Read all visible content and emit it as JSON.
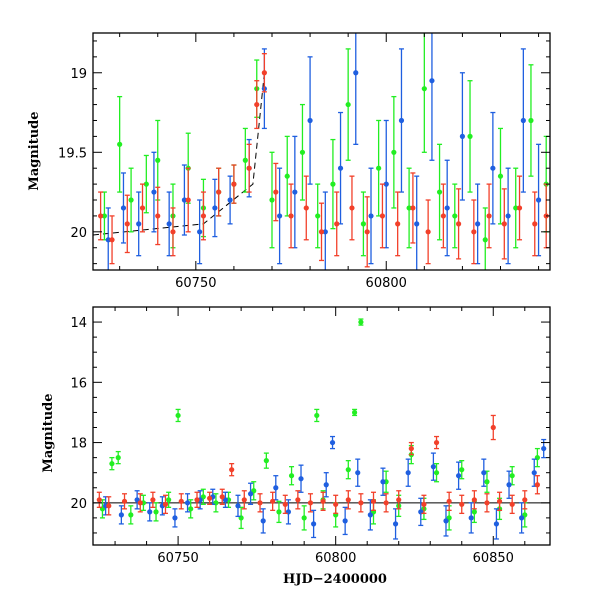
{
  "chart_data": [
    {
      "type": "scatter",
      "panel": "top",
      "ylabel": "Magnitude",
      "xlabel": "",
      "xlim": [
        60723,
        60843
      ],
      "ylim": [
        20.24,
        18.75
      ],
      "y_inverted": true,
      "x_major_ticks": [
        60750,
        60800
      ],
      "x_minor_step": 10,
      "y_major_ticks": [
        19,
        19.5,
        20
      ],
      "y_tick_labels": [
        "19",
        "19.5",
        "20"
      ],
      "x_tick_labels": [
        "60750",
        "60800"
      ],
      "y_minor_step": 0.1,
      "reference_line": {
        "style": "dashed",
        "points": [
          [
            60723,
            20.02
          ],
          [
            60752,
            19.95
          ],
          [
            60765,
            19.7
          ],
          [
            60768,
            19.0
          ]
        ]
      },
      "series": [
        {
          "color": "#22ee22",
          "x": [
            60726,
            60730,
            60733,
            60737,
            60740,
            60744,
            60748,
            60752,
            60756,
            60760,
            60763,
            60766,
            60770,
            60774,
            60778,
            60782,
            60786,
            60790,
            60794,
            60798,
            60802,
            60806,
            60810,
            60814,
            60818,
            60822,
            60826,
            60830,
            60834,
            60838,
            60842
          ],
          "y": [
            19.9,
            19.45,
            19.8,
            19.7,
            19.55,
            19.9,
            19.6,
            19.85,
            19.75,
            19.7,
            19.55,
            19.1,
            19.8,
            19.65,
            19.5,
            19.9,
            19.7,
            19.2,
            19.95,
            19.6,
            19.5,
            19.85,
            19.1,
            19.75,
            19.9,
            19.4,
            20.05,
            19.65,
            19.85,
            19.3,
            19.7
          ],
          "err": [
            0.15,
            0.3,
            0.2,
            0.18,
            0.25,
            0.2,
            0.22,
            0.18,
            0.15,
            0.12,
            0.2,
            0.18,
            0.3,
            0.25,
            0.3,
            0.2,
            0.28,
            0.35,
            0.2,
            0.3,
            0.35,
            0.25,
            0.4,
            0.3,
            0.2,
            0.35,
            0.2,
            0.3,
            0.25,
            0.35,
            0.3
          ]
        },
        {
          "color": "#1f5fe0",
          "x": [
            60727,
            60731,
            60735,
            60739,
            60743,
            60747,
            60751,
            60755,
            60759,
            60764,
            60768,
            60772,
            60776,
            60780,
            60784,
            60788,
            60792,
            60796,
            60800,
            60804,
            60808,
            60812,
            60816,
            60820,
            60824,
            60828,
            60832,
            60836,
            60840
          ],
          "y": [
            20.05,
            19.85,
            19.95,
            19.75,
            19.95,
            19.8,
            20.0,
            19.85,
            19.8,
            19.6,
            19.1,
            19.9,
            19.75,
            19.3,
            20.0,
            19.6,
            19.0,
            19.9,
            19.7,
            19.3,
            19.95,
            19.05,
            19.85,
            19.4,
            19.95,
            19.6,
            19.9,
            19.3,
            19.8
          ],
          "err": [
            0.2,
            0.22,
            0.2,
            0.25,
            0.2,
            0.22,
            0.2,
            0.18,
            0.15,
            0.18,
            0.25,
            0.3,
            0.35,
            0.4,
            0.25,
            0.35,
            0.45,
            0.3,
            0.4,
            0.45,
            0.3,
            0.5,
            0.3,
            0.4,
            0.25,
            0.35,
            0.3,
            0.45,
            0.35
          ]
        },
        {
          "color": "#f2402a",
          "x": [
            60725,
            60728,
            60732,
            60736,
            60740,
            60744,
            60748,
            60752,
            60756,
            60760,
            60764,
            60766,
            60768,
            60771,
            60775,
            60779,
            60783,
            60787,
            60791,
            60795,
            60799,
            60803,
            60807,
            60811,
            60815,
            60819,
            60823,
            60827,
            60831,
            60835,
            60839,
            60842
          ],
          "y": [
            19.9,
            20.05,
            19.95,
            19.85,
            19.9,
            20.0,
            19.8,
            19.9,
            19.75,
            19.7,
            19.6,
            19.2,
            19.0,
            19.75,
            19.9,
            19.85,
            20.0,
            19.95,
            19.85,
            20.0,
            19.9,
            19.95,
            19.85,
            20.0,
            19.9,
            19.95,
            20.0,
            19.9,
            19.95,
            19.85,
            19.95,
            19.9
          ],
          "err": [
            0.15,
            0.15,
            0.18,
            0.15,
            0.18,
            0.15,
            0.2,
            0.15,
            0.15,
            0.12,
            0.15,
            0.15,
            0.12,
            0.18,
            0.2,
            0.2,
            0.18,
            0.2,
            0.2,
            0.22,
            0.2,
            0.2,
            0.22,
            0.2,
            0.2,
            0.22,
            0.2,
            0.2,
            0.22,
            0.2,
            0.2,
            0.2
          ]
        }
      ]
    },
    {
      "type": "scatter",
      "panel": "bottom",
      "ylabel": "Magnitude",
      "xlabel": "HJD−2400000",
      "xlim": [
        60723,
        60868
      ],
      "ylim": [
        21.4,
        13.5
      ],
      "y_inverted": true,
      "x_major_ticks": [
        60750,
        60800,
        60850
      ],
      "x_minor_step": 10,
      "y_major_ticks": [
        14,
        16,
        18,
        20
      ],
      "y_tick_labels": [
        "14",
        "16",
        "18",
        "20"
      ],
      "x_tick_labels": [
        "60750",
        "60800",
        "60850"
      ],
      "y_minor_step": 0.5,
      "reference_line": {
        "style": "solid",
        "y": 20.0
      },
      "series": [
        {
          "color": "#22ee22",
          "x": [
            60726,
            60729,
            60731,
            60735,
            60739,
            60743,
            60747,
            60750,
            60754,
            60758,
            60762,
            60766,
            60770,
            60774,
            60778,
            60782,
            60786,
            60790,
            60794,
            60796,
            60800,
            60804,
            60806,
            60808,
            60812,
            60816,
            60820,
            60824,
            60828,
            60832,
            60836,
            60840,
            60844,
            60848,
            60852,
            60856,
            60860,
            60864
          ],
          "y": [
            20.2,
            18.7,
            18.5,
            20.4,
            20.0,
            20.3,
            19.9,
            17.1,
            20.2,
            19.8,
            20.0,
            19.9,
            20.5,
            19.6,
            18.6,
            20.3,
            19.1,
            20.5,
            17.1,
            19.9,
            20.4,
            18.9,
            17.0,
            14.0,
            20.3,
            19.3,
            20.1,
            18.4,
            20.2,
            19.0,
            20.5,
            18.9,
            20.3,
            19.3,
            20.2,
            19.1,
            20.4,
            18.5
          ],
          "err": [
            0.3,
            0.2,
            0.2,
            0.3,
            0.25,
            0.3,
            0.25,
            0.2,
            0.3,
            0.25,
            0.3,
            0.25,
            0.35,
            0.3,
            0.25,
            0.35,
            0.3,
            0.4,
            0.2,
            0.3,
            0.4,
            0.3,
            0.1,
            0.1,
            0.4,
            0.35,
            0.35,
            0.3,
            0.35,
            0.3,
            0.4,
            0.3,
            0.35,
            0.35,
            0.35,
            0.3,
            0.4,
            0.3
          ]
        },
        {
          "color": "#1f5fe0",
          "x": [
            60727,
            60732,
            60737,
            60741,
            60745,
            60749,
            60753,
            60757,
            60761,
            60765,
            60769,
            60773,
            60777,
            60781,
            60785,
            60789,
            60793,
            60797,
            60799,
            60803,
            60807,
            60811,
            60815,
            60819,
            60823,
            60827,
            60831,
            60835,
            60839,
            60843,
            60847,
            60851,
            60855,
            60859,
            60863,
            60866
          ],
          "y": [
            20.1,
            20.4,
            19.9,
            20.3,
            20.1,
            20.5,
            20.0,
            19.9,
            19.8,
            19.9,
            20.1,
            19.7,
            20.6,
            19.5,
            20.3,
            19.2,
            20.7,
            19.4,
            18.0,
            20.6,
            19.0,
            20.4,
            19.3,
            20.7,
            19.0,
            20.3,
            18.8,
            20.6,
            19.1,
            20.5,
            19.0,
            20.7,
            19.4,
            20.5,
            19.0,
            18.2
          ],
          "err": [
            0.3,
            0.3,
            0.3,
            0.3,
            0.3,
            0.3,
            0.3,
            0.3,
            0.25,
            0.25,
            0.35,
            0.35,
            0.4,
            0.4,
            0.4,
            0.45,
            0.45,
            0.4,
            0.2,
            0.45,
            0.45,
            0.5,
            0.45,
            0.5,
            0.45,
            0.45,
            0.45,
            0.5,
            0.45,
            0.5,
            0.45,
            0.5,
            0.45,
            0.5,
            0.45,
            0.3
          ]
        },
        {
          "color": "#f2402a",
          "x": [
            60725,
            60728,
            60733,
            60738,
            60742,
            60746,
            60751,
            60756,
            60760,
            60764,
            60767,
            60771,
            60776,
            60780,
            60784,
            60788,
            60792,
            60796,
            60800,
            60804,
            60808,
            60812,
            60816,
            60820,
            60824,
            60828,
            60832,
            60836,
            60840,
            60844,
            60848,
            60850,
            60852,
            60856,
            60860,
            60864
          ],
          "y": [
            19.9,
            20.1,
            19.95,
            20.0,
            19.9,
            20.05,
            19.95,
            19.9,
            19.85,
            19.8,
            18.9,
            19.9,
            20.0,
            19.95,
            20.05,
            19.9,
            20.0,
            19.95,
            20.05,
            19.9,
            20.0,
            19.95,
            20.0,
            19.9,
            18.2,
            20.05,
            18.0,
            19.95,
            20.05,
            19.9,
            20.0,
            17.5,
            19.95,
            20.05,
            19.9,
            19.4
          ],
          "err": [
            0.25,
            0.3,
            0.25,
            0.3,
            0.25,
            0.3,
            0.25,
            0.25,
            0.2,
            0.25,
            0.2,
            0.3,
            0.3,
            0.3,
            0.3,
            0.3,
            0.3,
            0.3,
            0.3,
            0.3,
            0.3,
            0.3,
            0.3,
            0.3,
            0.2,
            0.3,
            0.2,
            0.3,
            0.3,
            0.3,
            0.3,
            0.4,
            0.3,
            0.3,
            0.3,
            0.3
          ]
        }
      ]
    }
  ]
}
